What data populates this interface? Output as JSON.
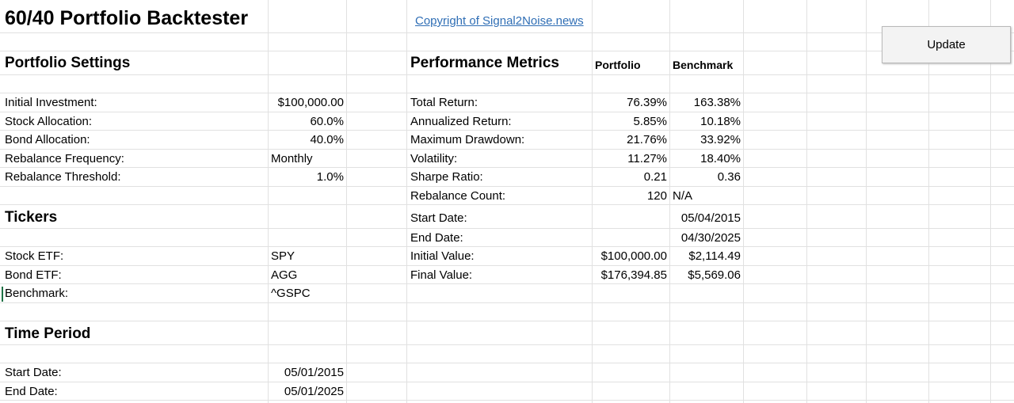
{
  "title": "60/40 Portfolio Backtester",
  "copyright_link": "Copyright of Signal2Noise.news",
  "update_button": "Update",
  "settings": {
    "header": "Portfolio Settings",
    "rows": [
      {
        "label": "Initial Investment:",
        "value": "$100,000.00"
      },
      {
        "label": "Stock Allocation:",
        "value": "60.0%"
      },
      {
        "label": "Bond Allocation:",
        "value": "40.0%"
      },
      {
        "label": "Rebalance Frequency:",
        "value": "Monthly"
      },
      {
        "label": "Rebalance Threshold:",
        "value": "1.0%"
      }
    ]
  },
  "tickers": {
    "header": "Tickers",
    "rows": [
      {
        "label": "Stock ETF:",
        "value": "SPY"
      },
      {
        "label": "Bond ETF:",
        "value": "AGG"
      },
      {
        "label": "Benchmark:",
        "value": "^GSPC"
      }
    ]
  },
  "time_period": {
    "header": "Time Period",
    "rows": [
      {
        "label": "Start Date:",
        "value": "05/01/2015"
      },
      {
        "label": "End Date:",
        "value": "05/01/2025"
      }
    ]
  },
  "metrics": {
    "header": "Performance Metrics",
    "col_portfolio": "Portfolio",
    "col_benchmark": "Benchmark",
    "rows": [
      {
        "label": "Total Return:",
        "portfolio": "76.39%",
        "benchmark": "163.38%"
      },
      {
        "label": "Annualized Return:",
        "portfolio": "5.85%",
        "benchmark": "10.18%"
      },
      {
        "label": "Maximum Drawdown:",
        "portfolio": "21.76%",
        "benchmark": "33.92%"
      },
      {
        "label": "Volatility:",
        "portfolio": "11.27%",
        "benchmark": "18.40%"
      },
      {
        "label": "Sharpe Ratio:",
        "portfolio": "0.21",
        "benchmark": "0.36"
      },
      {
        "label": "Rebalance Count:",
        "portfolio": "120",
        "benchmark": "N/A"
      },
      {
        "label": "Start Date:",
        "portfolio": "",
        "benchmark": "05/04/2015"
      },
      {
        "label": "End Date:",
        "portfolio": "",
        "benchmark": "04/30/2025"
      },
      {
        "label": "Initial Value:",
        "portfolio": "$100,000.00",
        "benchmark": "$2,114.49"
      },
      {
        "label": "Final Value:",
        "portfolio": "$176,394.85",
        "benchmark": "$5,569.06"
      }
    ]
  }
}
